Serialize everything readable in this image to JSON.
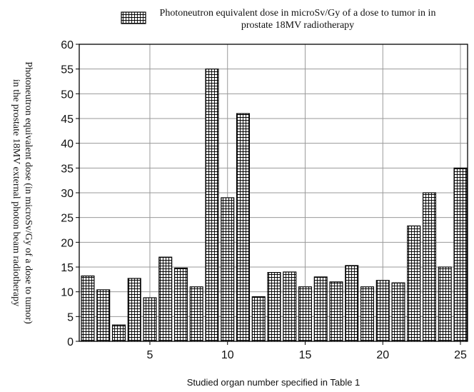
{
  "chart_data": {
    "type": "bar",
    "ylabel": [
      "Photoneutron equivalent dose (in microSv/Gy of a dose to tumor)",
      "in the prostate 18MV external photon beam radiotherapy"
    ],
    "xlabel": "Studied organ number specified in Table 1",
    "x": [
      1,
      2,
      3,
      4,
      5,
      6,
      7,
      8,
      9,
      10,
      11,
      12,
      13,
      14,
      15,
      16,
      17,
      18,
      19,
      20,
      21,
      22,
      23,
      24,
      25
    ],
    "series": [
      {
        "name": "Photoneutron equivalent dose in microSv/Gy of a dose to tumor in in prostate 18MV radiotherapy",
        "color": "#000000",
        "values": [
          13.2,
          10.4,
          3.3,
          12.7,
          8.8,
          17,
          14.8,
          11,
          55,
          29,
          46,
          9,
          13.9,
          14,
          11,
          13,
          12,
          15.3,
          11,
          12.3,
          11.8,
          23.3,
          30,
          15,
          35
        ]
      }
    ],
    "xlim": [
      0.45,
      25.46
    ],
    "xticks": [
      5,
      10,
      15,
      20,
      25
    ],
    "ylim": [
      0,
      60
    ],
    "yticks": [
      0,
      5,
      10,
      15,
      20,
      25,
      30,
      35,
      40,
      45,
      50,
      55,
      60
    ],
    "grid": true,
    "legend": "top"
  }
}
